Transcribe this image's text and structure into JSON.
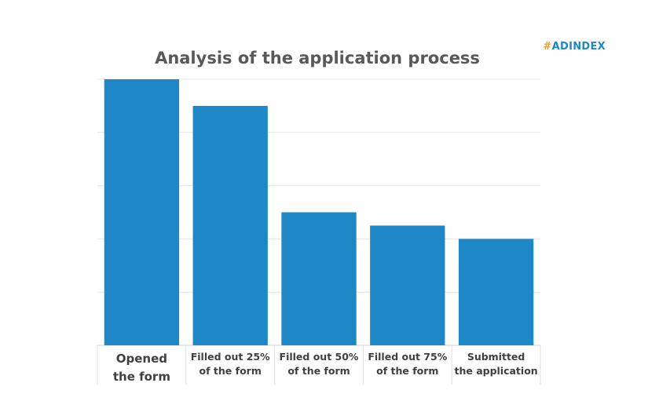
{
  "brand": {
    "hash": "#",
    "name": "ADINDEX",
    "hash_color": "#f0a030",
    "name_color": "#1e88c7"
  },
  "chart_data": {
    "type": "bar",
    "title": "Analysis of the application process",
    "xlabel": "",
    "ylabel": "",
    "ylim": [
      0,
      100
    ],
    "grid": true,
    "bar_color": "#1e88c7",
    "categories": [
      [
        "Opened",
        "the form"
      ],
      [
        "Filled out 25%",
        "of the form"
      ],
      [
        "Filled out 50%",
        "of the form"
      ],
      [
        "Filled out 75%",
        "of the form"
      ],
      [
        "Submitted",
        "the application"
      ]
    ],
    "values": [
      100,
      90,
      50,
      45,
      40
    ]
  }
}
